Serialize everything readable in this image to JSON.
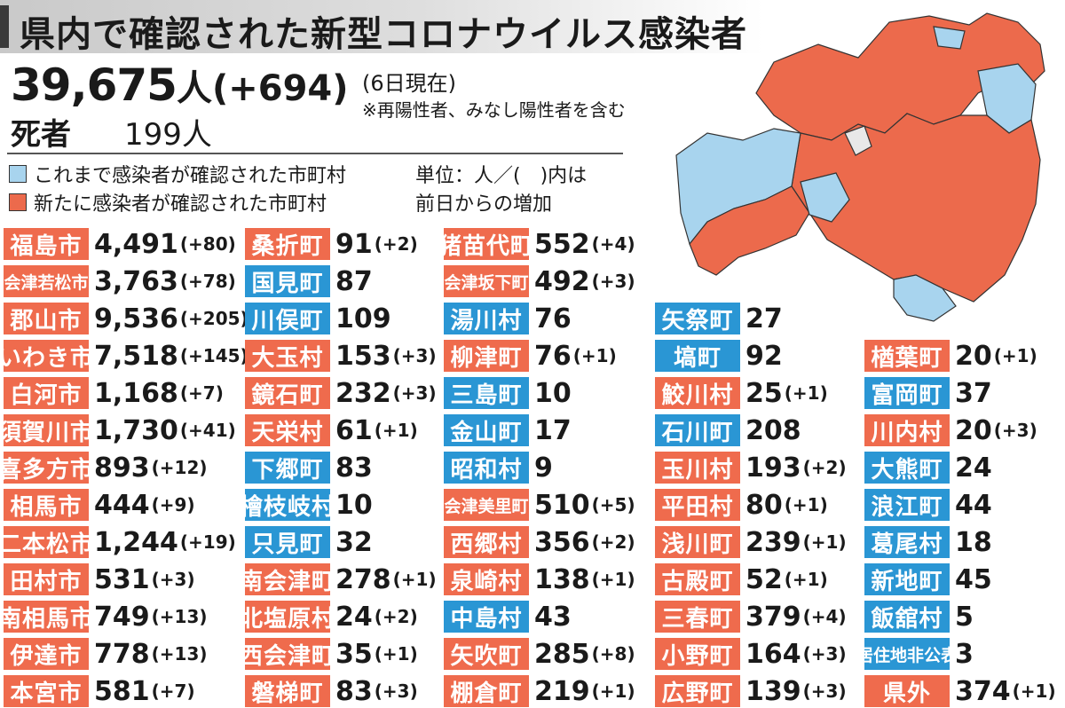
{
  "title": "県内で確認された新型コロナウイルス感染者",
  "total": {
    "count": "39,675",
    "unit": "人",
    "delta": "(+694)",
    "as_of": "(6日現在)"
  },
  "note": "※再陽性者、みなし陽性者を含む",
  "deaths": {
    "label": "死者",
    "value": "199人"
  },
  "legend": {
    "prior": "これまで感染者が確認された市町村",
    "new": "新たに感染者が確認された市町村",
    "unit_line1": "単位：人／(　)内は",
    "unit_line2": "前日からの増加"
  },
  "colors": {
    "new": "#ef6b4d",
    "prior": "#2a96d4",
    "map_new": "#ec6a4c",
    "map_prior": "#a8d4ee",
    "map_none": "#e8e8e8"
  },
  "municipalities": [
    [
      {
        "name": "福島市",
        "count": "4,491",
        "delta": "(+80)",
        "status": "new"
      },
      {
        "name": "会津若松市",
        "count": "3,763",
        "delta": "(+78)",
        "status": "new"
      },
      {
        "name": "郡山市",
        "count": "9,536",
        "delta": "(+205)",
        "status": "new"
      },
      {
        "name": "いわき市",
        "count": "7,518",
        "delta": "(+145)",
        "status": "new"
      },
      {
        "name": "白河市",
        "count": "1,168",
        "delta": "(+7)",
        "status": "new"
      },
      {
        "name": "須賀川市",
        "count": "1,730",
        "delta": "(+41)",
        "status": "new"
      },
      {
        "name": "喜多方市",
        "count": "893",
        "delta": "(+12)",
        "status": "new"
      },
      {
        "name": "相馬市",
        "count": "444",
        "delta": "(+9)",
        "status": "new"
      },
      {
        "name": "二本松市",
        "count": "1,244",
        "delta": "(+19)",
        "status": "new"
      },
      {
        "name": "田村市",
        "count": "531",
        "delta": "(+3)",
        "status": "new"
      },
      {
        "name": "南相馬市",
        "count": "749",
        "delta": "(+13)",
        "status": "new"
      },
      {
        "name": "伊達市",
        "count": "778",
        "delta": "(+13)",
        "status": "new"
      },
      {
        "name": "本宮市",
        "count": "581",
        "delta": "(+7)",
        "status": "new"
      }
    ],
    [
      {
        "name": "桑折町",
        "count": "91",
        "delta": "(+2)",
        "status": "new"
      },
      {
        "name": "国見町",
        "count": "87",
        "delta": "",
        "status": "prior"
      },
      {
        "name": "川俣町",
        "count": "109",
        "delta": "",
        "status": "prior"
      },
      {
        "name": "大玉村",
        "count": "153",
        "delta": "(+3)",
        "status": "new"
      },
      {
        "name": "鏡石町",
        "count": "232",
        "delta": "(+3)",
        "status": "new"
      },
      {
        "name": "天栄村",
        "count": "61",
        "delta": "(+1)",
        "status": "new"
      },
      {
        "name": "下郷町",
        "count": "83",
        "delta": "",
        "status": "prior"
      },
      {
        "name": "檜枝岐村",
        "count": "10",
        "delta": "",
        "status": "prior"
      },
      {
        "name": "只見町",
        "count": "32",
        "delta": "",
        "status": "prior"
      },
      {
        "name": "南会津町",
        "count": "278",
        "delta": "(+1)",
        "status": "new"
      },
      {
        "name": "北塩原村",
        "count": "24",
        "delta": "(+2)",
        "status": "new"
      },
      {
        "name": "西会津町",
        "count": "35",
        "delta": "(+1)",
        "status": "new"
      },
      {
        "name": "磐梯町",
        "count": "83",
        "delta": "(+3)",
        "status": "new"
      }
    ],
    [
      {
        "name": "猪苗代町",
        "count": "552",
        "delta": "(+4)",
        "status": "new"
      },
      {
        "name": "会津坂下町",
        "count": "492",
        "delta": "(+3)",
        "status": "new"
      },
      {
        "name": "湯川村",
        "count": "76",
        "delta": "",
        "status": "prior"
      },
      {
        "name": "柳津町",
        "count": "76",
        "delta": "(+1)",
        "status": "new"
      },
      {
        "name": "三島町",
        "count": "10",
        "delta": "",
        "status": "prior"
      },
      {
        "name": "金山町",
        "count": "17",
        "delta": "",
        "status": "prior"
      },
      {
        "name": "昭和村",
        "count": "9",
        "delta": "",
        "status": "prior"
      },
      {
        "name": "会津美里町",
        "count": "510",
        "delta": "(+5)",
        "status": "new"
      },
      {
        "name": "西郷村",
        "count": "356",
        "delta": "(+2)",
        "status": "new"
      },
      {
        "name": "泉崎村",
        "count": "138",
        "delta": "(+1)",
        "status": "new"
      },
      {
        "name": "中島村",
        "count": "43",
        "delta": "",
        "status": "prior"
      },
      {
        "name": "矢吹町",
        "count": "285",
        "delta": "(+8)",
        "status": "new"
      },
      {
        "name": "棚倉町",
        "count": "219",
        "delta": "(+1)",
        "status": "new"
      }
    ],
    [
      {
        "name": "矢祭町",
        "count": "27",
        "delta": "",
        "status": "prior"
      },
      {
        "name": "塙町",
        "count": "92",
        "delta": "",
        "status": "prior"
      },
      {
        "name": "鮫川村",
        "count": "25",
        "delta": "(+1)",
        "status": "new"
      },
      {
        "name": "石川町",
        "count": "208",
        "delta": "",
        "status": "prior"
      },
      {
        "name": "玉川村",
        "count": "193",
        "delta": "(+2)",
        "status": "new"
      },
      {
        "name": "平田村",
        "count": "80",
        "delta": "(+1)",
        "status": "new"
      },
      {
        "name": "浅川町",
        "count": "239",
        "delta": "(+1)",
        "status": "new"
      },
      {
        "name": "古殿町",
        "count": "52",
        "delta": "(+1)",
        "status": "new"
      },
      {
        "name": "三春町",
        "count": "379",
        "delta": "(+4)",
        "status": "new"
      },
      {
        "name": "小野町",
        "count": "164",
        "delta": "(+3)",
        "status": "new"
      },
      {
        "name": "広野町",
        "count": "139",
        "delta": "(+3)",
        "status": "new"
      }
    ],
    [
      {
        "name": "楢葉町",
        "count": "20",
        "delta": "(+1)",
        "status": "new"
      },
      {
        "name": "富岡町",
        "count": "37",
        "delta": "",
        "status": "prior"
      },
      {
        "name": "川内村",
        "count": "20",
        "delta": "(+3)",
        "status": "new"
      },
      {
        "name": "大熊町",
        "count": "24",
        "delta": "",
        "status": "prior"
      },
      {
        "name": "浪江町",
        "count": "44",
        "delta": "",
        "status": "prior"
      },
      {
        "name": "葛尾村",
        "count": "18",
        "delta": "",
        "status": "prior"
      },
      {
        "name": "新地町",
        "count": "45",
        "delta": "",
        "status": "prior"
      },
      {
        "name": "飯舘村",
        "count": "5",
        "delta": "",
        "status": "prior"
      },
      {
        "name": "居住地非公表",
        "count": "3",
        "delta": "",
        "status": "prior"
      },
      {
        "name": "県外",
        "count": "374",
        "delta": "(+1)",
        "status": "new"
      }
    ]
  ]
}
